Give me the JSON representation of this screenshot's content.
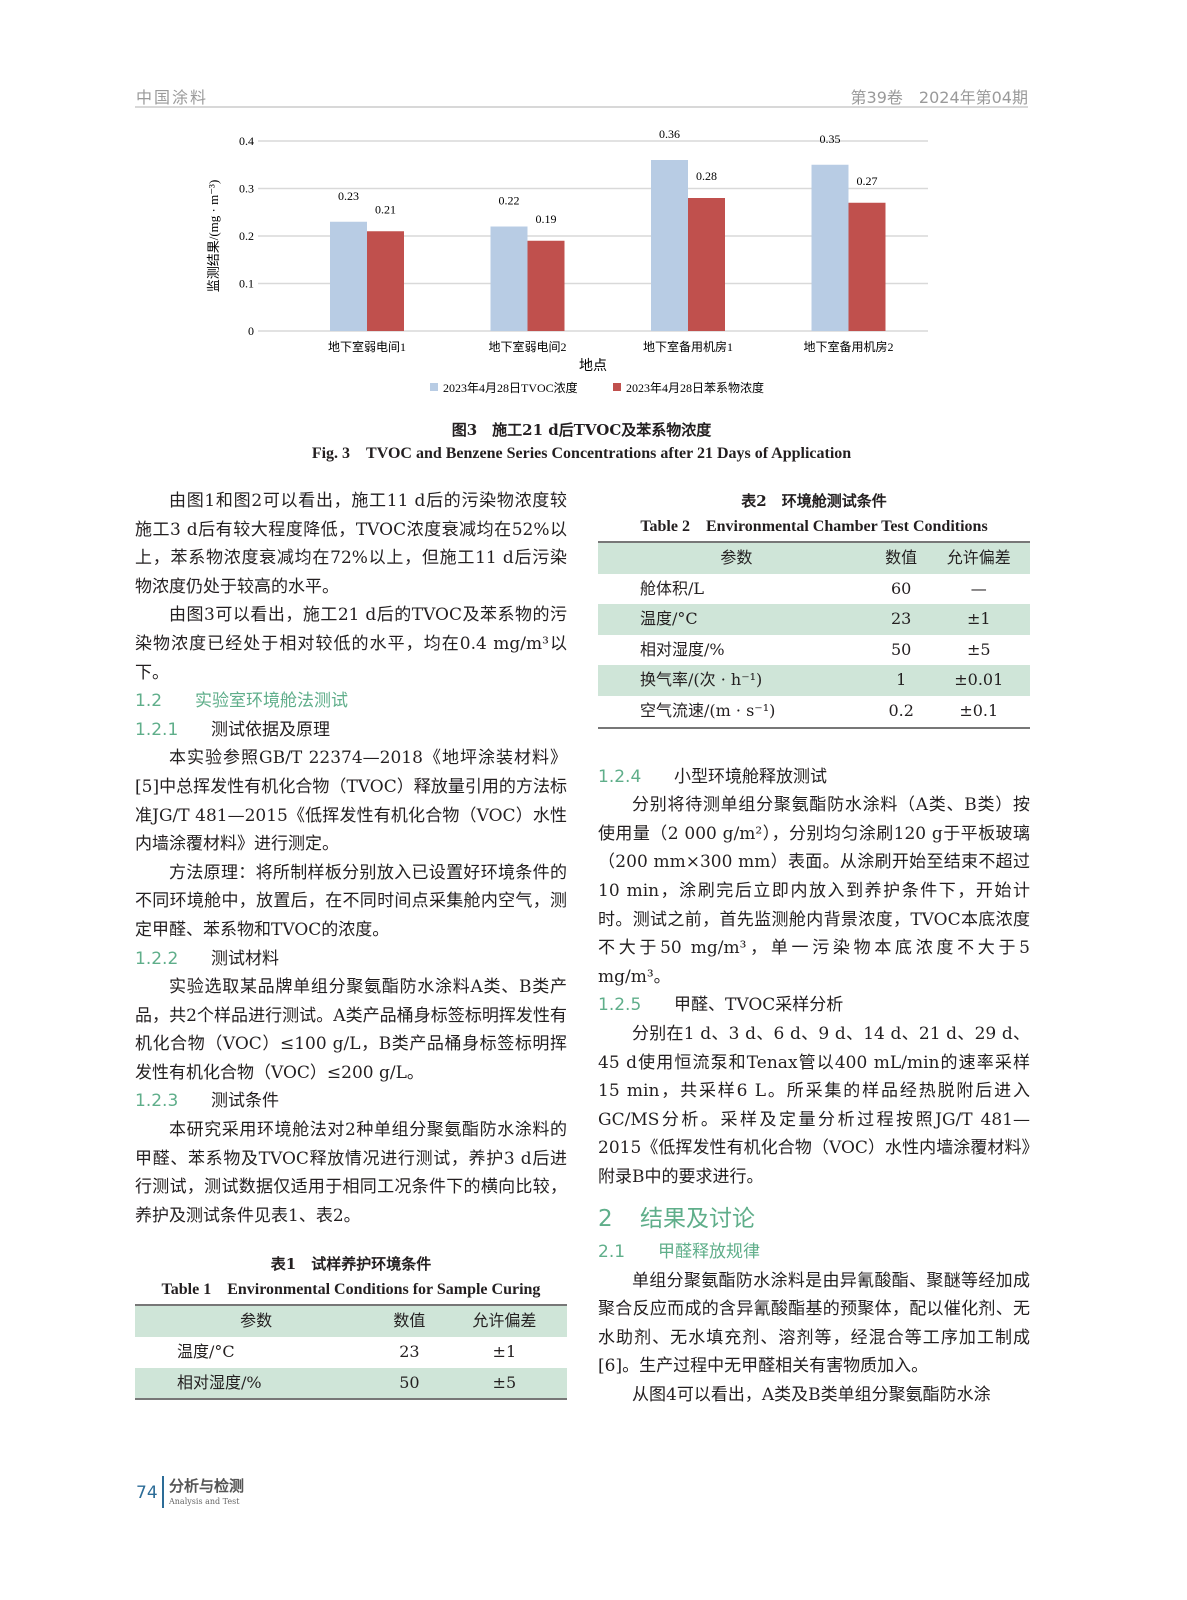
{
  "header": {
    "journal": "中国涂料",
    "issue": "第39卷　2024年第04期"
  },
  "chart_data": {
    "type": "bar",
    "categories": [
      "地下室弱电间1",
      "地下室弱电间2",
      "地下室备用机房1",
      "地下室备用机房2"
    ],
    "series": [
      {
        "name": "2023年4月28日TVOC浓度",
        "values": [
          0.23,
          0.22,
          0.36,
          0.35
        ],
        "color": "#b8cce4"
      },
      {
        "name": "2023年4月28日苯系物浓度",
        "values": [
          0.21,
          0.19,
          0.28,
          0.27
        ],
        "color": "#c0504d"
      }
    ],
    "xlabel": "地点",
    "ylabel": "监测结果/(mg · m⁻³)",
    "ylim": [
      0,
      0.4
    ],
    "yticks": [
      "0",
      "0.1",
      "0.2",
      "0.3",
      "0.4"
    ],
    "grid": true,
    "legend": "bottom"
  },
  "figure": {
    "caption_cn": "图3　施工21 d后TVOC及苯系物浓度",
    "caption_en": "Fig. 3　TVOC and Benzene Series Concentrations after 21 Days of Application"
  },
  "left": {
    "p1": "由图1和图2可以看出，施工11 d后的污染物浓度较施工3 d后有较大程度降低，TVOC浓度衰减均在52%以上，苯系物浓度衰减均在72%以上，但施工11 d后污染物浓度仍处于较高的水平。",
    "p2": "由图3可以看出，施工21 d后的TVOC及苯系物的污染物浓度已经处于相对较低的水平，均在0.4 mg/m³以下。",
    "s12": {
      "num": "1.2",
      "title": "实验室环境舱法测试"
    },
    "s121": {
      "num": "1.2.1",
      "title": "测试依据及原理"
    },
    "p3": "本实验参照GB/T 22374—2018《地坪涂装材料》[5]中总挥发性有机化合物（TVOC）释放量引用的方法标准JG/T 481—2015《低挥发性有机化合物（VOC）水性内墙涂覆材料》进行测定。",
    "p4": "方法原理：将所制样板分别放入已设置好环境条件的不同环境舱中，放置后，在不同时间点采集舱内空气，测定甲醛、苯系物和TVOC的浓度。",
    "s122": {
      "num": "1.2.2",
      "title": "测试材料"
    },
    "p5": "实验选取某品牌单组分聚氨酯防水涂料A类、B类产品，共2个样品进行测试。A类产品桶身标签标明挥发性有机化合物（VOC）≤100 g/L，B类产品桶身标签标明挥发性有机化合物（VOC）≤200 g/L。",
    "s123": {
      "num": "1.2.3",
      "title": "测试条件"
    },
    "p6": "本研究采用环境舱法对2种单组分聚氨酯防水涂料的甲醛、苯系物及TVOC释放情况进行测试，养护3 d后进行测试，测试数据仅适用于相同工况条件下的横向比较，养护及测试条件见表1、表2。",
    "table1": {
      "cap_cn": "表1　试样养护环境条件",
      "cap_en": "Table 1　Environmental Conditions for Sample Curing",
      "headers": [
        "参数",
        "数值",
        "允许偏差"
      ],
      "rows": [
        [
          "温度/°C",
          "23",
          "±1"
        ],
        [
          "相对湿度/%",
          "50",
          "±5"
        ]
      ]
    }
  },
  "right": {
    "table2": {
      "cap_cn": "表2　环境舱测试条件",
      "cap_en": "Table 2　Environmental Chamber Test Conditions",
      "headers": [
        "参数",
        "数值",
        "允许偏差"
      ],
      "rows": [
        [
          "舱体积/L",
          "60",
          "—"
        ],
        [
          "温度/°C",
          "23",
          "±1"
        ],
        [
          "相对湿度/%",
          "50",
          "±5"
        ],
        [
          "换气率/(次 · h⁻¹)",
          "1",
          "±0.01"
        ],
        [
          "空气流速/(m · s⁻¹)",
          "0.2",
          "±0.1"
        ]
      ]
    },
    "s124": {
      "num": "1.2.4",
      "title": "小型环境舱释放测试"
    },
    "p1": "分别将待测单组分聚氨酯防水涂料（A类、B类）按使用量（2 000 g/m²），分别均匀涂刷120 g于平板玻璃（200 mm×300 mm）表面。从涂刷开始至结束不超过10 min，涂刷完后立即内放入到养护条件下，开始计时。测试之前，首先监测舱内背景浓度，TVOC本底浓度不大于50 mg/m³，单一污染物本底浓度不大于5 mg/m³。",
    "s125": {
      "num": "1.2.5",
      "title": "甲醛、TVOC采样分析"
    },
    "p2": "分别在1 d、3 d、6 d、9 d、14 d、21 d、29 d、45 d使用恒流泵和Tenax管以400 mL/min的速率采样15 min，共采样6 L。所采集的样品经热脱附后进入GC/MS分析。采样及定量分析过程按照JG/T 481—2015《低挥发性有机化合物（VOC）水性内墙涂覆材料》附录B中的要求进行。",
    "s2": {
      "num": "2",
      "title": "结果及讨论"
    },
    "s21": {
      "num": "2.1",
      "title": "甲醛释放规律"
    },
    "p3": "单组分聚氨酯防水涂料是由异氰酸酯、聚醚等经加成聚合反应而成的含异氰酸酯基的预聚体，配以催化剂、无水助剂、无水填充剂、溶剂等，经混合等工序加工制成[6]。生产过程中无甲醛相关有害物质加入。",
    "p4": "从图4可以看出，A类及B类单组分聚氨酯防水涂"
  },
  "footer": {
    "page": "74",
    "section": "分析与检测",
    "section_en": "Analysis and Test"
  }
}
